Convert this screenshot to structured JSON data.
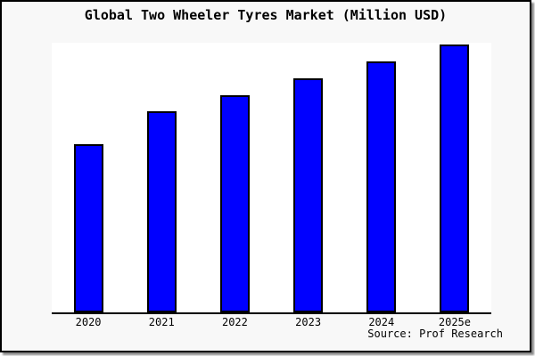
{
  "title": "Global Two Wheeler Tyres Market (Million USD)",
  "source": "Source: Prof Research",
  "colors": {
    "canvas_bg": "#f8f8f8",
    "plot_bg": "#ffffff",
    "bar_fill": "#0000ff",
    "bar_border": "#000000",
    "axis": "#000000",
    "frame_border": "#000000",
    "frame_shadow": "#8a8a8a",
    "text": "#000000"
  },
  "chart_data": {
    "type": "bar",
    "title": "Global Two Wheeler Tyres Market (Million USD)",
    "categories": [
      "2020",
      "2021",
      "2022",
      "2023",
      "2024",
      "2025e"
    ],
    "values": [
      62.8,
      75.1,
      81.1,
      87.4,
      93.7,
      100
    ],
    "value_scale": "relative, normalized to 2025e = 100 (no numeric y-axis shown)",
    "xlabel": "",
    "ylabel": "",
    "ylim": [
      0,
      100.7
    ],
    "grid": false,
    "legend": false,
    "y_axis_ticks_shown": false,
    "annotation": "Source: Prof Research"
  }
}
